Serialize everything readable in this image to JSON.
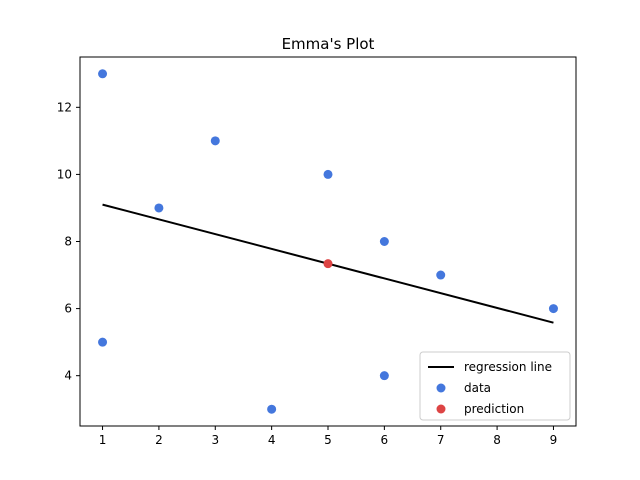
{
  "chart_data": {
    "type": "scatter",
    "title": "Emma's Plot",
    "xlabel": "",
    "ylabel": "",
    "xlim": [
      0.6,
      9.4
    ],
    "ylim": [
      2.5,
      13.5
    ],
    "x_ticks": [
      1,
      2,
      3,
      4,
      5,
      6,
      7,
      8,
      9
    ],
    "y_ticks": [
      4,
      6,
      8,
      10,
      12
    ],
    "grid": false,
    "legend_position": "bottom-right",
    "series": [
      {
        "name": "regression line",
        "kind": "line",
        "color": "#000000",
        "x": [
          1,
          9
        ],
        "y": [
          9.1,
          5.58
        ]
      },
      {
        "name": "data",
        "kind": "scatter",
        "color": "#4477dd",
        "x": [
          1,
          1,
          2,
          3,
          4,
          5,
          6,
          6,
          7,
          9
        ],
        "y": [
          13,
          5,
          9,
          11,
          3,
          10,
          8,
          4,
          7,
          6
        ]
      },
      {
        "name": "prediction",
        "kind": "scatter",
        "color": "#dd4444",
        "x": [
          5
        ],
        "y": [
          7.34
        ]
      }
    ]
  }
}
